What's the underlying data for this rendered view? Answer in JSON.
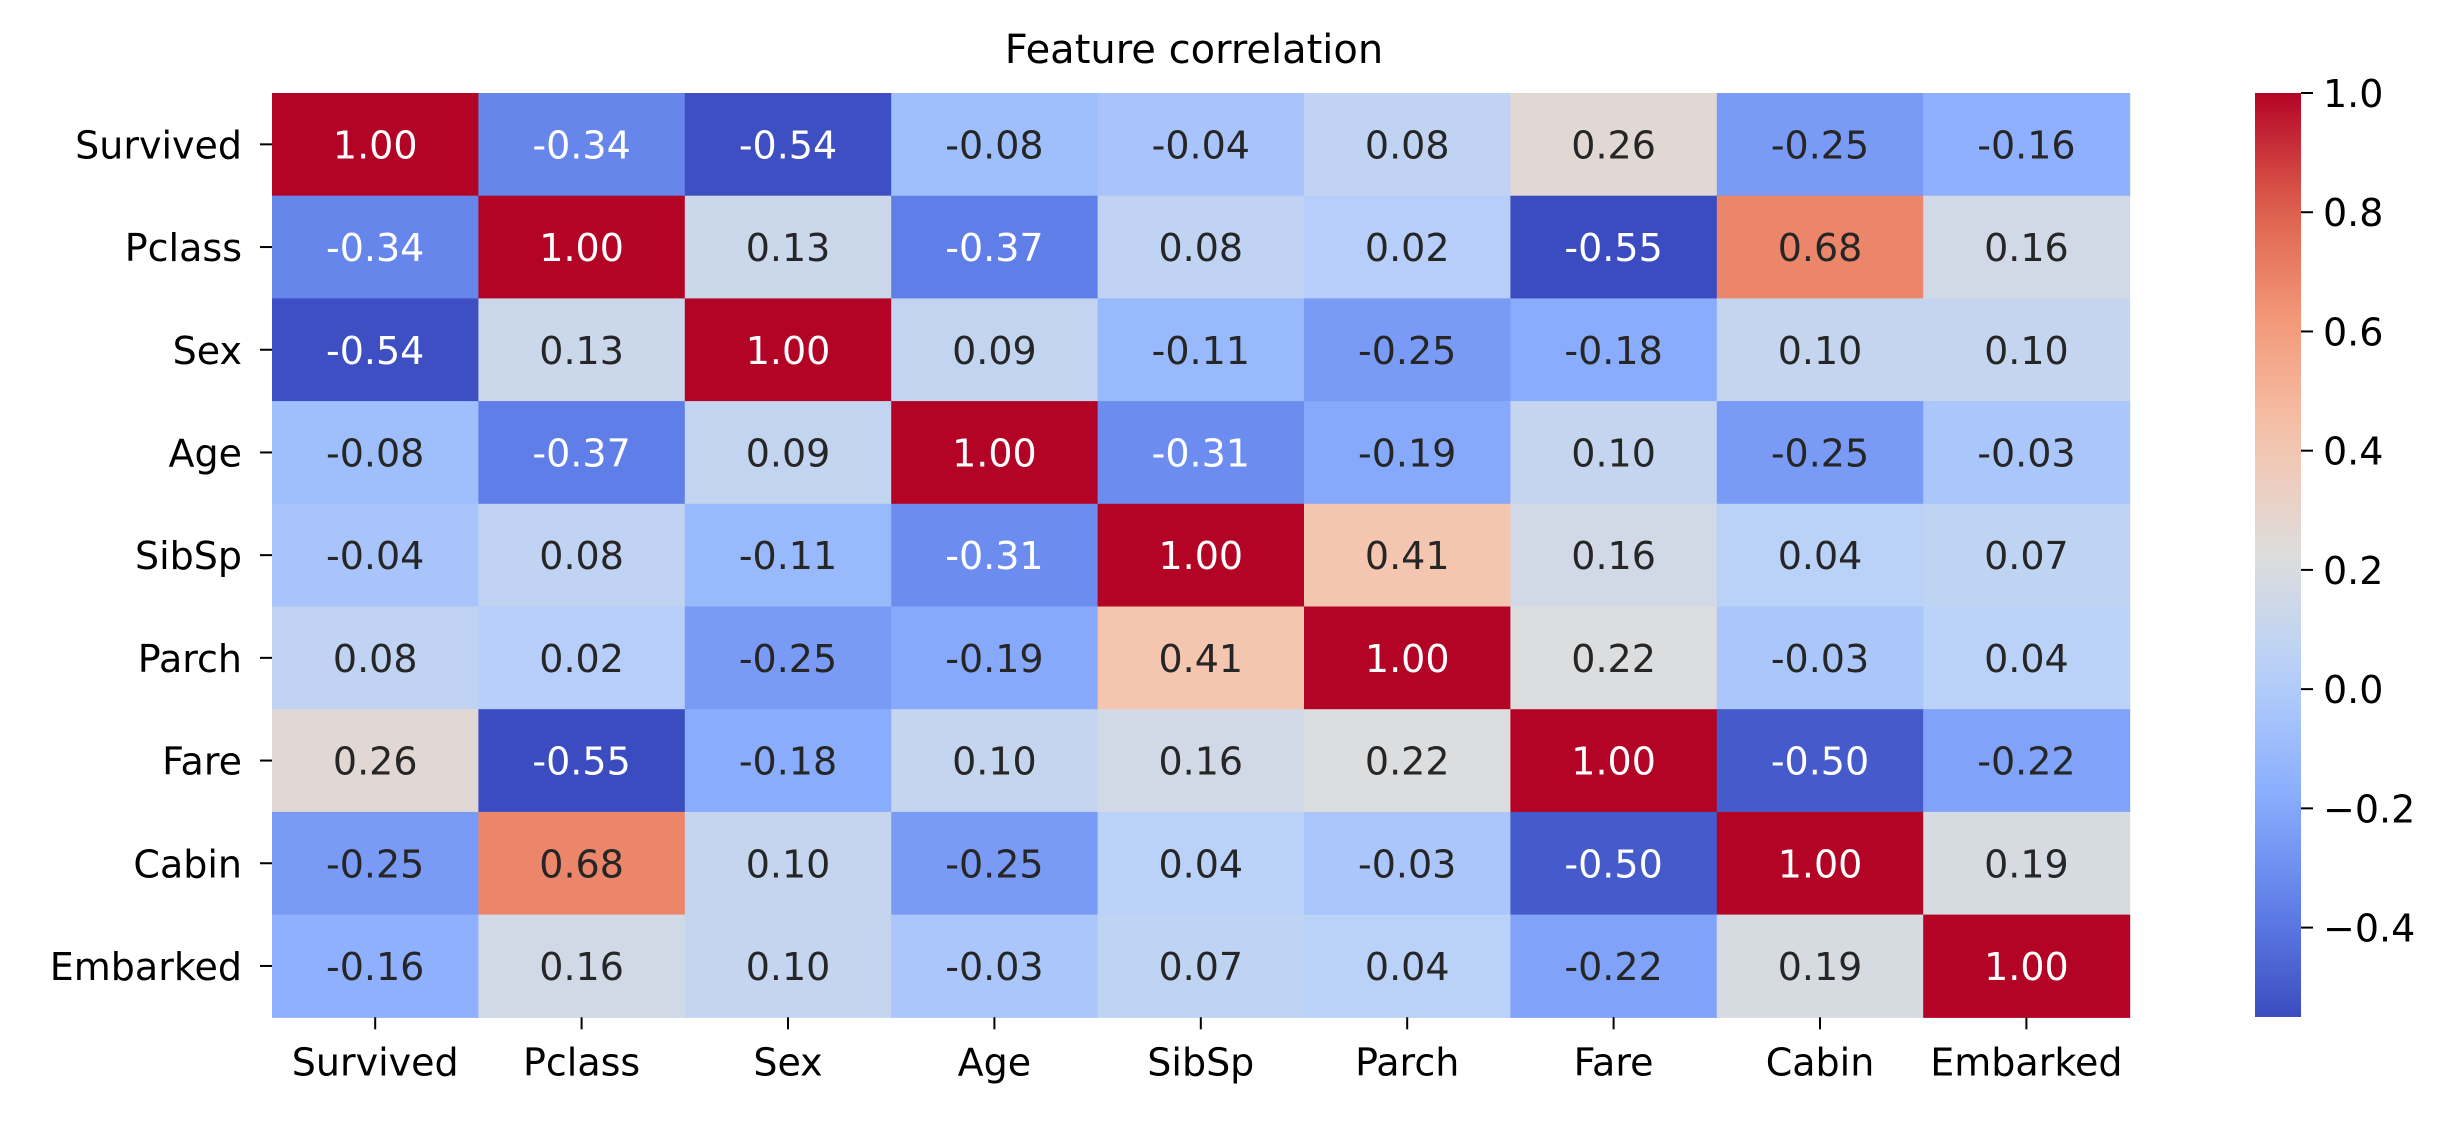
{
  "chart_data": {
    "type": "heatmap",
    "title": "Feature correlation",
    "rows": [
      "Survived",
      "Pclass",
      "Sex",
      "Age",
      "SibSp",
      "Parch",
      "Fare",
      "Cabin",
      "Embarked"
    ],
    "columns": [
      "Survived",
      "Pclass",
      "Sex",
      "Age",
      "SibSp",
      "Parch",
      "Fare",
      "Cabin",
      "Embarked"
    ],
    "values": [
      [
        1.0,
        -0.34,
        -0.54,
        -0.08,
        -0.04,
        0.08,
        0.26,
        -0.25,
        -0.16
      ],
      [
        -0.34,
        1.0,
        0.13,
        -0.37,
        0.08,
        0.02,
        -0.55,
        0.68,
        0.16
      ],
      [
        -0.54,
        0.13,
        1.0,
        0.09,
        -0.11,
        -0.25,
        -0.18,
        0.1,
        0.1
      ],
      [
        -0.08,
        -0.37,
        0.09,
        1.0,
        -0.31,
        -0.19,
        0.1,
        -0.25,
        -0.03
      ],
      [
        -0.04,
        0.08,
        -0.11,
        -0.31,
        1.0,
        0.41,
        0.16,
        0.04,
        0.07
      ],
      [
        0.08,
        0.02,
        -0.25,
        -0.19,
        0.41,
        1.0,
        0.22,
        -0.03,
        0.04
      ],
      [
        0.26,
        -0.55,
        -0.18,
        0.1,
        0.16,
        0.22,
        1.0,
        -0.5,
        -0.22
      ],
      [
        -0.25,
        0.68,
        0.1,
        -0.25,
        0.04,
        -0.03,
        -0.5,
        1.0,
        0.19
      ],
      [
        -0.16,
        0.16,
        0.1,
        -0.03,
        0.07,
        0.04,
        -0.22,
        0.19,
        1.0
      ]
    ],
    "colormap": "coolwarm",
    "vmin": -0.55,
    "vmax": 1.0,
    "annotation_format": "0.00",
    "colorbar": {
      "ticks": [
        -0.4,
        -0.2,
        0.0,
        0.2,
        0.4,
        0.6,
        0.8,
        1.0
      ],
      "tick_labels": [
        "−0.4",
        "−0.2",
        "0.0",
        "0.2",
        "0.4",
        "0.6",
        "0.8",
        "1.0"
      ]
    },
    "grid": false,
    "colors": {
      "text_dark": "#262626",
      "text_light": "#ffffff"
    }
  }
}
